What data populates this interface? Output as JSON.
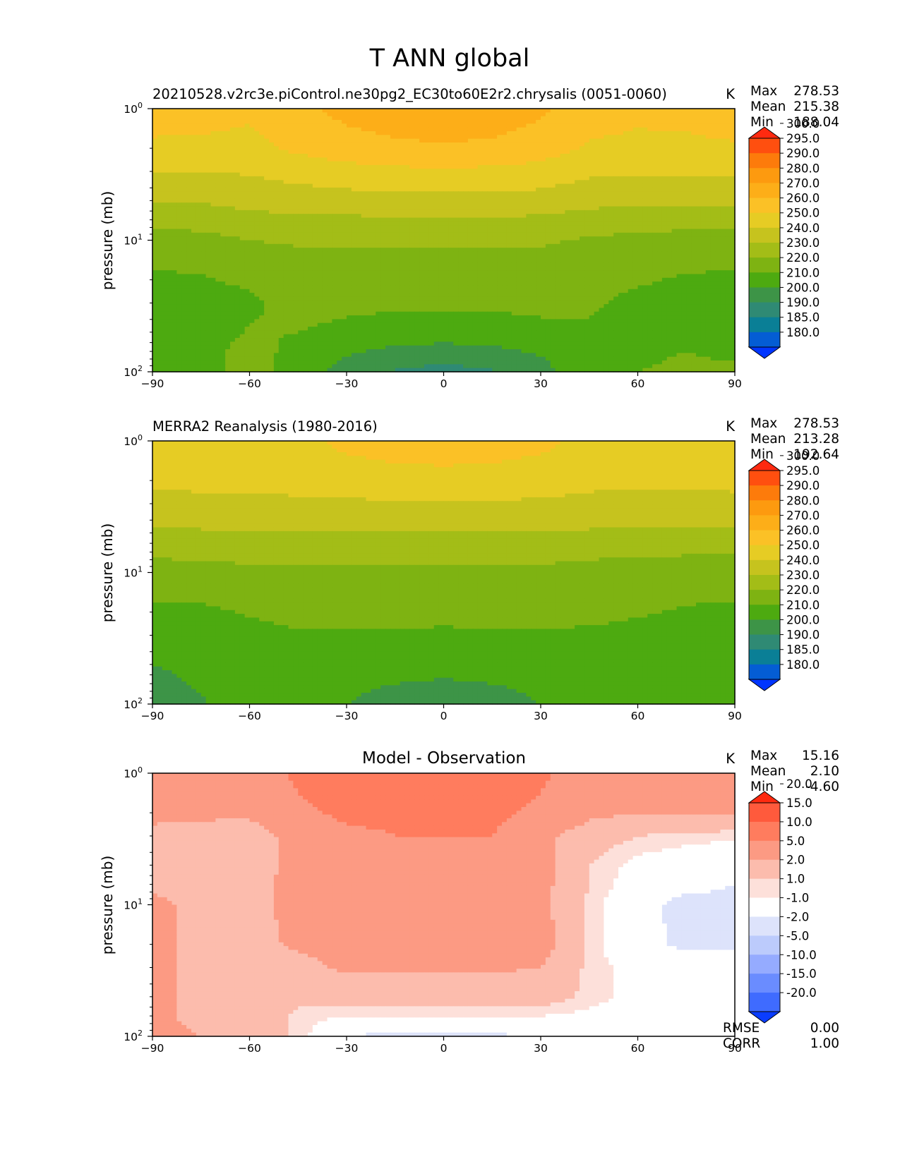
{
  "figure": {
    "title": "T ANN global"
  },
  "palettes": {
    "abs": [
      "#0035ff",
      "#045dd4",
      "#0a7f96",
      "#2f8a74",
      "#3d9447",
      "#4daa10",
      "#7eb312",
      "#a3bd17",
      "#c6c31e",
      "#e6cc24",
      "#fbc126",
      "#fdae18",
      "#fd9a0f",
      "#fd7b0b",
      "#ff4f0f",
      "#ff2a10"
    ],
    "diff": [
      "#0a3dff",
      "#3f6bff",
      "#6a8cff",
      "#95abff",
      "#bccbfc",
      "#dde3fb",
      "#ffffff",
      "#fde0da",
      "#fcbcad",
      "#fc9a83",
      "#ff7c5e",
      "#ff5a3c",
      "#ff2a10"
    ]
  },
  "panels": [
    {
      "title_left": "20210528.v2rc3e.piControl.ne30pg2_EC30to60E2r2.chrysalis (0051-0060)",
      "title_center": "",
      "units": "K",
      "stats": [
        {
          "label": "Max",
          "value": "278.53"
        },
        {
          "label": "Mean",
          "value": "215.38"
        },
        {
          "label": "Min",
          "value": "188.04"
        }
      ],
      "extra_stats": []
    },
    {
      "title_left": "MERRA2 Reanalysis (1980-2016)",
      "title_center": "",
      "units": "K",
      "stats": [
        {
          "label": "Max",
          "value": "278.53"
        },
        {
          "label": "Mean",
          "value": "213.28"
        },
        {
          "label": "Min",
          "value": "192.64"
        }
      ],
      "extra_stats": []
    },
    {
      "title_left": "",
      "title_center": "Model - Observation",
      "units": "K",
      "stats": [
        {
          "label": "Max",
          "value": "15.16"
        },
        {
          "label": "Mean",
          "value": "2.10"
        },
        {
          "label": "Min",
          "value": "-4.60"
        }
      ],
      "extra_stats": [
        {
          "label": "RMSE",
          "value": "0.00"
        },
        {
          "label": "CORR",
          "value": "1.00"
        }
      ]
    }
  ],
  "chart_data": [
    {
      "type": "heatmap",
      "subtype": "filled-contour",
      "title": "20210528.v2rc3e.piControl.ne30pg2_EC30to60E2r2.chrysalis (0051-0060)",
      "xlabel": "",
      "ylabel": "pressure (mb)",
      "xlim": [
        -90,
        90
      ],
      "xticks": [
        -90,
        -60,
        -30,
        0,
        30,
        60,
        90
      ],
      "xtick_labels": [
        "−90",
        "−60",
        "−30",
        "0",
        "30",
        "60",
        "90"
      ],
      "yscale": "log",
      "ylim": [
        100,
        1
      ],
      "yticks": [
        1,
        10,
        100
      ],
      "ytick_labels": [
        {
          "base": "10",
          "exp": "0"
        },
        {
          "base": "10",
          "exp": "1"
        },
        {
          "base": "10",
          "exp": "2"
        }
      ],
      "colorbar": {
        "levels": [
          "180.0",
          "185.0",
          "190.0",
          "200.0",
          "210.0",
          "220.0",
          "230.0",
          "240.0",
          "250.0",
          "260.0",
          "270.0",
          "280.0",
          "290.0",
          "295.0",
          "300.0"
        ],
        "extend": "both",
        "units": "K"
      },
      "field": {
        "lat": [
          -90,
          -75,
          -60,
          -45,
          -30,
          -15,
          0,
          15,
          30,
          45,
          60,
          75,
          90
        ],
        "plev": [
          1,
          2,
          3,
          5,
          7,
          10,
          20,
          30,
          50,
          70,
          100
        ],
        "values": [
          [
            265,
            264,
            262,
            268,
            273,
            276,
            277,
            276,
            272,
            264,
            262,
            263,
            265
          ],
          [
            258,
            258,
            257,
            262,
            266,
            268,
            269,
            268,
            265,
            259,
            258,
            258,
            259
          ],
          [
            250,
            250,
            251,
            254,
            256,
            258,
            258,
            258,
            256,
            252,
            251,
            251,
            252
          ],
          [
            240,
            241,
            243,
            245,
            246,
            247,
            247,
            247,
            246,
            243,
            242,
            242,
            243
          ],
          [
            233,
            234,
            237,
            238,
            238,
            239,
            239,
            239,
            238,
            236,
            235,
            234,
            234
          ],
          [
            226,
            227,
            230,
            231,
            231,
            231,
            231,
            231,
            231,
            229,
            227,
            226,
            225
          ],
          [
            218,
            219,
            222,
            225,
            225,
            224,
            224,
            224,
            225,
            223,
            221,
            219,
            218
          ],
          [
            215,
            215,
            218,
            224,
            223,
            222,
            222,
            222,
            223,
            221,
            218,
            216,
            214
          ],
          [
            215,
            214,
            221,
            220,
            217,
            215,
            214,
            215,
            217,
            219,
            219,
            218,
            216
          ],
          [
            216,
            215,
            225,
            216,
            211,
            208,
            207,
            208,
            211,
            217,
            219,
            220,
            219
          ],
          [
            217,
            216,
            225,
            214,
            207,
            199,
            196,
            199,
            207,
            216,
            220,
            221,
            221
          ]
        ]
      }
    },
    {
      "type": "heatmap",
      "subtype": "filled-contour",
      "title": "MERRA2 Reanalysis (1980-2016)",
      "xlabel": "",
      "ylabel": "pressure (mb)",
      "xlim": [
        -90,
        90
      ],
      "xticks": [
        -90,
        -60,
        -30,
        0,
        30,
        60,
        90
      ],
      "xtick_labels": [
        "−90",
        "−60",
        "−30",
        "0",
        "30",
        "60",
        "90"
      ],
      "yscale": "log",
      "ylim": [
        100,
        1
      ],
      "yticks": [
        1,
        10,
        100
      ],
      "ytick_labels": [
        {
          "base": "10",
          "exp": "0"
        },
        {
          "base": "10",
          "exp": "1"
        },
        {
          "base": "10",
          "exp": "2"
        }
      ],
      "colorbar": {
        "levels": [
          "180.0",
          "185.0",
          "190.0",
          "200.0",
          "210.0",
          "220.0",
          "230.0",
          "240.0",
          "250.0",
          "260.0",
          "270.0",
          "280.0",
          "290.0",
          "295.0",
          "300.0"
        ],
        "extend": "both",
        "units": "K"
      },
      "field": {
        "lat": [
          -90,
          -75,
          -60,
          -45,
          -30,
          -15,
          0,
          15,
          30,
          45,
          60,
          75,
          90
        ],
        "plev": [
          1,
          2,
          3,
          5,
          7,
          10,
          20,
          30,
          50,
          70,
          100
        ],
        "values": [
          [
            258,
            257,
            257,
            258,
            262,
            264,
            265,
            264,
            262,
            258,
            257,
            257,
            258
          ],
          [
            253,
            253,
            252,
            254,
            256,
            257,
            257,
            257,
            256,
            253,
            252,
            252,
            253
          ],
          [
            246,
            247,
            248,
            248,
            248,
            249,
            249,
            249,
            248,
            247,
            246,
            246,
            247
          ],
          [
            239,
            239,
            240,
            240,
            240,
            240,
            240,
            240,
            240,
            239,
            238,
            238,
            239
          ],
          [
            232,
            232,
            233,
            233,
            233,
            233,
            233,
            233,
            233,
            232,
            231,
            231,
            231
          ],
          [
            226,
            227,
            228,
            228,
            228,
            228,
            228,
            228,
            228,
            227,
            226,
            225,
            225
          ],
          [
            218,
            218,
            221,
            225,
            225,
            225,
            225,
            225,
            225,
            223,
            221,
            219,
            218
          ],
          [
            213,
            214,
            216,
            218,
            218,
            218,
            217,
            218,
            218,
            218,
            217,
            216,
            215
          ],
          [
            210,
            213,
            215,
            216,
            215,
            214,
            213,
            214,
            215,
            216,
            216,
            215,
            214
          ],
          [
            207,
            211,
            215,
            216,
            213,
            210,
            209,
            210,
            213,
            216,
            216,
            215,
            214
          ],
          [
            205,
            209,
            215,
            216,
            210,
            205,
            203,
            205,
            210,
            216,
            216,
            215,
            214
          ]
        ]
      }
    },
    {
      "type": "heatmap",
      "subtype": "filled-contour",
      "title": "Model - Observation",
      "xlabel": "",
      "ylabel": "pressure (mb)",
      "xlim": [
        -90,
        90
      ],
      "xticks": [
        -90,
        -60,
        -30,
        0,
        30,
        60,
        90
      ],
      "xtick_labels": [
        "−90",
        "−60",
        "−30",
        "0",
        "30",
        "60",
        "90"
      ],
      "yscale": "log",
      "ylim": [
        100,
        1
      ],
      "yticks": [
        1,
        10,
        100
      ],
      "ytick_labels": [
        {
          "base": "10",
          "exp": "0"
        },
        {
          "base": "10",
          "exp": "1"
        },
        {
          "base": "10",
          "exp": "2"
        }
      ],
      "colorbar": {
        "levels": [
          "-20.0",
          "-15.0",
          "-10.0",
          "-5.0",
          "-2.0",
          "-1.0",
          "1.0",
          "2.0",
          "5.0",
          "10.0",
          "15.0",
          "20.0"
        ],
        "extend": "both",
        "units": "K"
      },
      "field": {
        "lat": [
          -90,
          -75,
          -60,
          -45,
          -30,
          -15,
          0,
          15,
          30,
          45,
          60,
          75,
          90
        ],
        "plev": [
          1,
          2,
          3,
          5,
          7,
          10,
          20,
          30,
          50,
          70,
          100
        ],
        "values": [
          [
            7,
            7,
            6,
            11,
            12,
            12,
            12,
            12,
            11,
            7,
            6,
            7,
            8
          ],
          [
            6,
            6,
            6,
            9,
            11,
            11,
            11,
            11,
            9,
            6,
            5,
            5,
            5
          ],
          [
            4,
            3,
            2.5,
            7,
            9,
            10,
            10,
            10,
            6,
            3,
            2,
            1.5,
            1.2
          ],
          [
            3.5,
            3.5,
            3.5,
            6,
            7,
            7,
            7,
            7,
            6,
            2,
            0.5,
            0,
            -0.2
          ],
          [
            4,
            4,
            4,
            6,
            7,
            7,
            7,
            7,
            6,
            2,
            0,
            -0.5,
            -1
          ],
          [
            6,
            4,
            4,
            6,
            7,
            7,
            7,
            7,
            6,
            1.5,
            -0.5,
            -1.5,
            -1.5
          ],
          [
            6,
            4,
            4,
            5.5,
            6.5,
            6.5,
            6.5,
            6.5,
            6.5,
            1.5,
            -0.5,
            -1.3,
            -1.2
          ],
          [
            6,
            4,
            4,
            4,
            5.5,
            5.5,
            5.5,
            5.5,
            5,
            1.5,
            0.5,
            -0.3,
            -0.5
          ],
          [
            6,
            4,
            4,
            2.5,
            3,
            3,
            3,
            3,
            3,
            1.5,
            0.5,
            0.5,
            0.5
          ],
          [
            6,
            4,
            4,
            1.5,
            1,
            1,
            1,
            1,
            1,
            0.6,
            0.5,
            0.5,
            0.5
          ],
          [
            6,
            5,
            3.5,
            1.5,
            -1,
            -1.5,
            -1.5,
            -1.5,
            -0.5,
            0.5,
            0.5,
            0.5,
            0.6
          ]
        ]
      }
    }
  ]
}
